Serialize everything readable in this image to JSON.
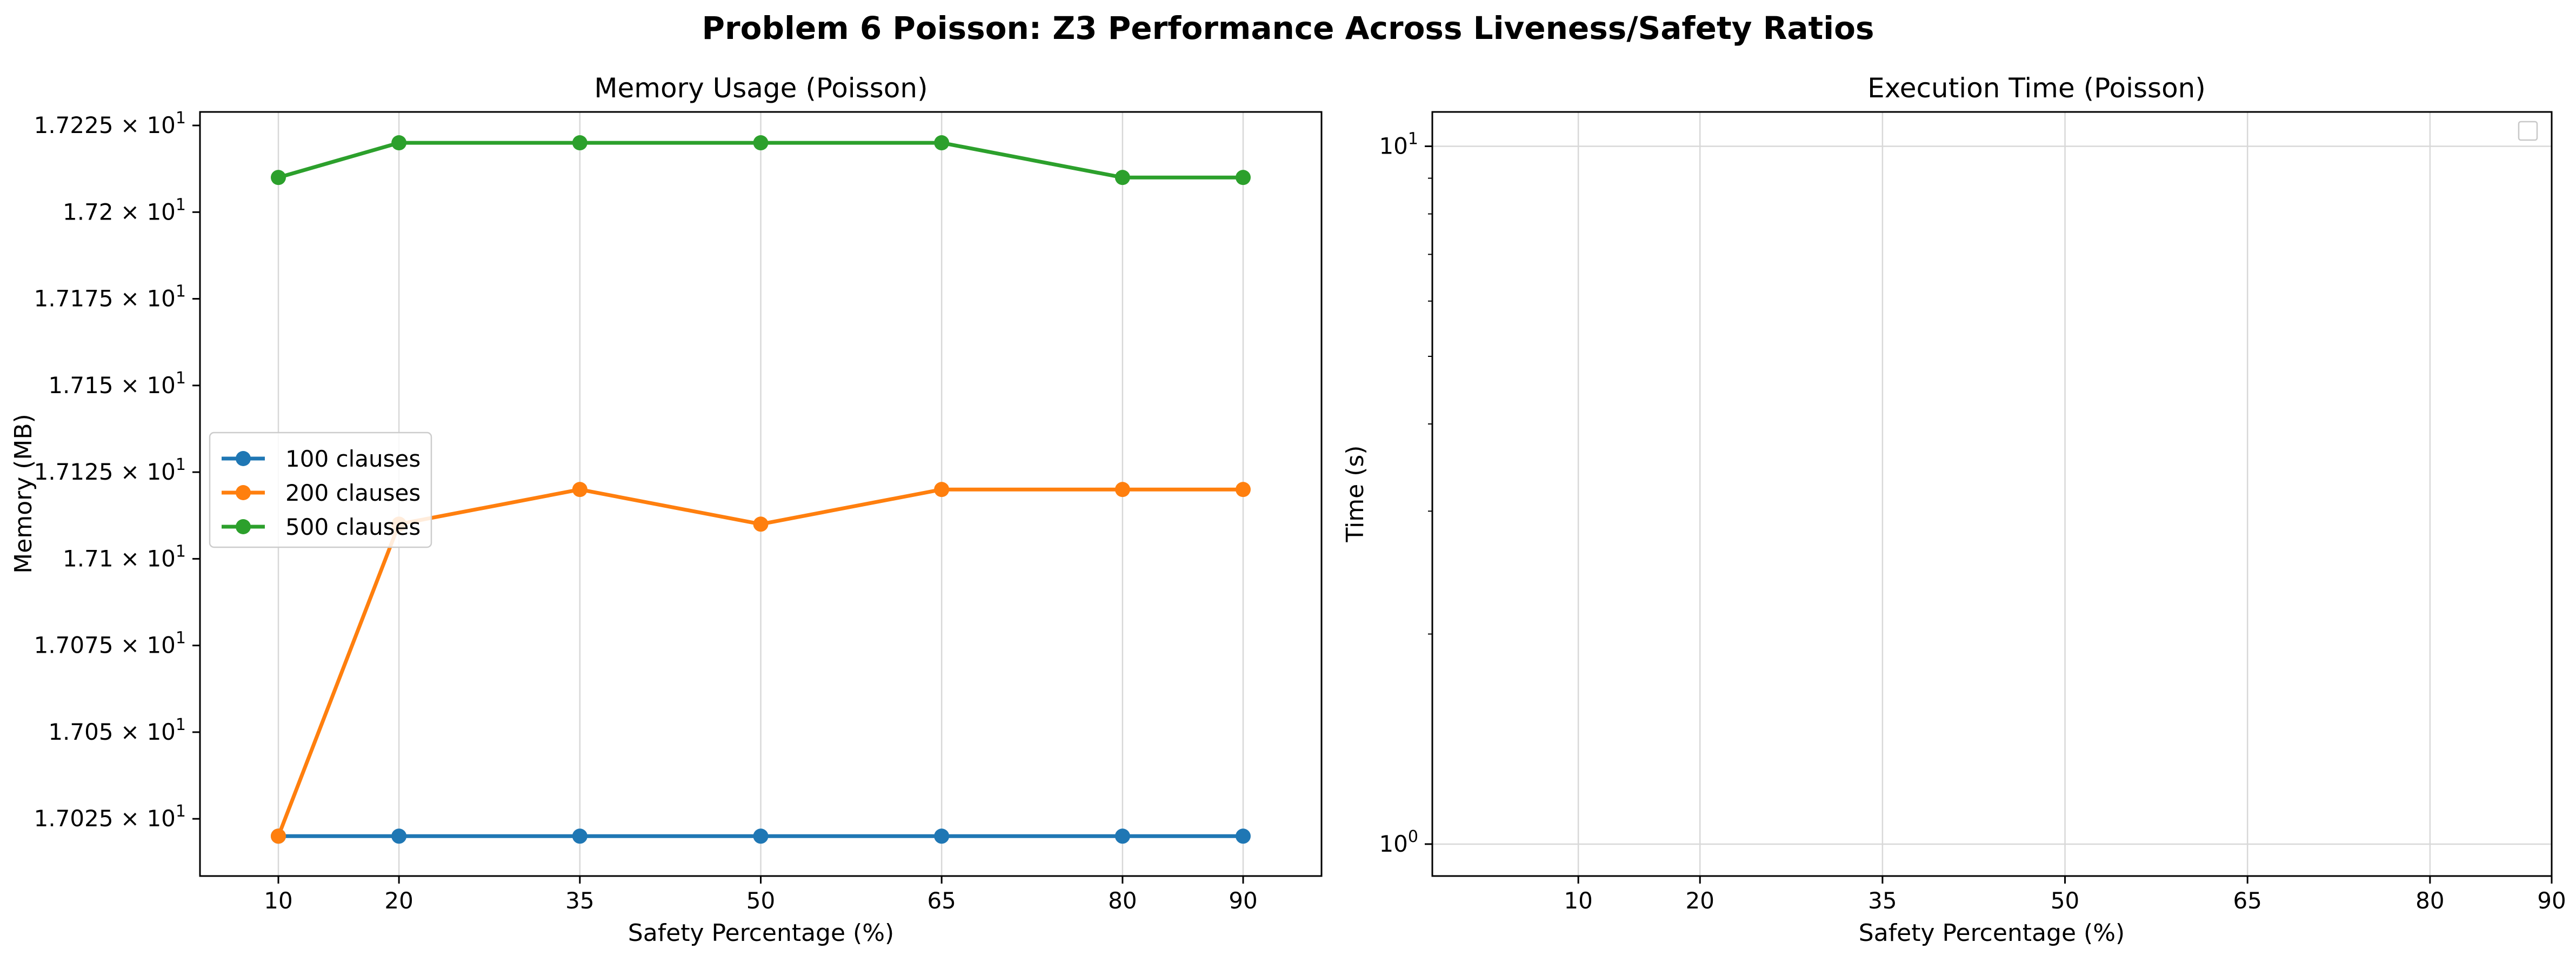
{
  "figure_title": "Problem 6 Poisson: Z3 Performance Across Liveness/Safety Ratios",
  "chart_data": [
    {
      "type": "line",
      "title": "Memory Usage (Poisson)",
      "xlabel": "Safety Percentage (%)",
      "ylabel": "Memory (MB)",
      "x": [
        10,
        20,
        35,
        50,
        65,
        80,
        90
      ],
      "xticks": [
        "10",
        "20",
        "35",
        "50",
        "65",
        "80",
        "90"
      ],
      "xlim": [
        3.5,
        96.5
      ],
      "ylim": [
        17.0085,
        17.2289
      ],
      "yticks": [
        {
          "value": 17.025,
          "mantissa": "1.7025",
          "base": "10",
          "exp": "1"
        },
        {
          "value": 17.05,
          "mantissa": "1.705",
          "base": "10",
          "exp": "1"
        },
        {
          "value": 17.075,
          "mantissa": "1.7075",
          "base": "10",
          "exp": "1"
        },
        {
          "value": 17.1,
          "mantissa": "1.71",
          "base": "10",
          "exp": "1"
        },
        {
          "value": 17.125,
          "mantissa": "1.7125",
          "base": "10",
          "exp": "1"
        },
        {
          "value": 17.15,
          "mantissa": "1.715",
          "base": "10",
          "exp": "1"
        },
        {
          "value": 17.175,
          "mantissa": "1.7175",
          "base": "10",
          "exp": "1"
        },
        {
          "value": 17.2,
          "mantissa": "1.72",
          "base": "10",
          "exp": "1"
        },
        {
          "value": 17.225,
          "mantissa": "1.7225",
          "base": "10",
          "exp": "1"
        }
      ],
      "grid": "vertical",
      "legend_position": "center-left",
      "series": [
        {
          "name": "100 clauses",
          "color": "#1f77b4",
          "values": [
            17.02,
            17.02,
            17.02,
            17.02,
            17.02,
            17.02,
            17.02
          ]
        },
        {
          "name": "200 clauses",
          "color": "#ff7f0e",
          "values": [
            17.02,
            17.11,
            17.12,
            17.11,
            17.12,
            17.12,
            17.12
          ]
        },
        {
          "name": "500 clauses",
          "color": "#2ca02c",
          "values": [
            17.21,
            17.22,
            17.22,
            17.22,
            17.22,
            17.21,
            17.21
          ]
        }
      ]
    },
    {
      "type": "line",
      "title": "Execution Time (Poisson)",
      "xlabel": "Safety Percentage (%)",
      "ylabel": "Time (s)",
      "xticks": [
        "10",
        "20",
        "35",
        "50",
        "65",
        "80",
        "90"
      ],
      "xtick_values": [
        10,
        20,
        35,
        50,
        65,
        80,
        90
      ],
      "xlim": [
        -2,
        90
      ],
      "yscale": "log",
      "ylim": [
        0.9,
        11.2
      ],
      "yticks": [
        {
          "value": 1,
          "base": "10",
          "exp": "0"
        },
        {
          "value": 10,
          "base": "10",
          "exp": "1"
        }
      ],
      "grid": "both",
      "legend_position": "top-right",
      "series": []
    }
  ]
}
